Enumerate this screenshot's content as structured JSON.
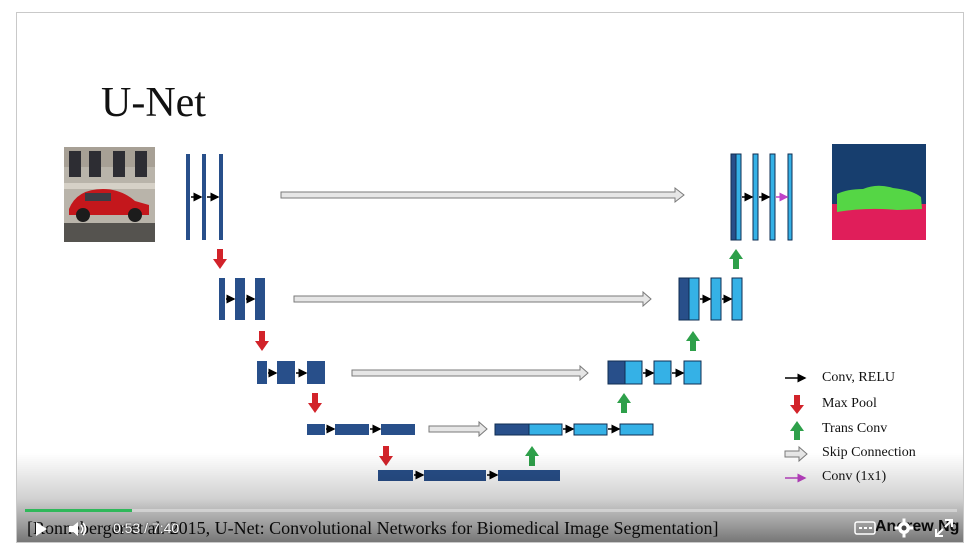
{
  "slide": {
    "title": "U-Net",
    "legend": [
      {
        "icon": "black-arrow-icon",
        "label": "Conv, RELU"
      },
      {
        "icon": "red-down-arrow-icon",
        "label": "Max Pool"
      },
      {
        "icon": "green-up-arrow-icon",
        "label": "Trans Conv"
      },
      {
        "icon": "hollow-arrow-icon",
        "label": "Skip Connection"
      },
      {
        "icon": "magenta-arrow-icon",
        "label": "Conv (1x1)"
      }
    ],
    "citation": "[Ronneberger et al. 2015, U-Net: Convolutional Networks for Biomedical Image Segmentation]",
    "author": "Andrew Ng"
  },
  "colors": {
    "encoder_block": "#284f8a",
    "decoder_block": "#35b1e6",
    "max_pool_arrow": "#d2232a",
    "trans_conv_arrow": "#2ea04a",
    "skip_arrow_fill": "#e6e6e6",
    "conv1x1_arrow": "#c043c8",
    "seg_background": "#173e6e",
    "seg_car": "#55d645",
    "seg_road": "#e01e5a",
    "progress": "#2fb85a"
  },
  "player": {
    "current_time": "0:53",
    "separator": "/",
    "duration": "7:40",
    "progress": 0.115
  }
}
